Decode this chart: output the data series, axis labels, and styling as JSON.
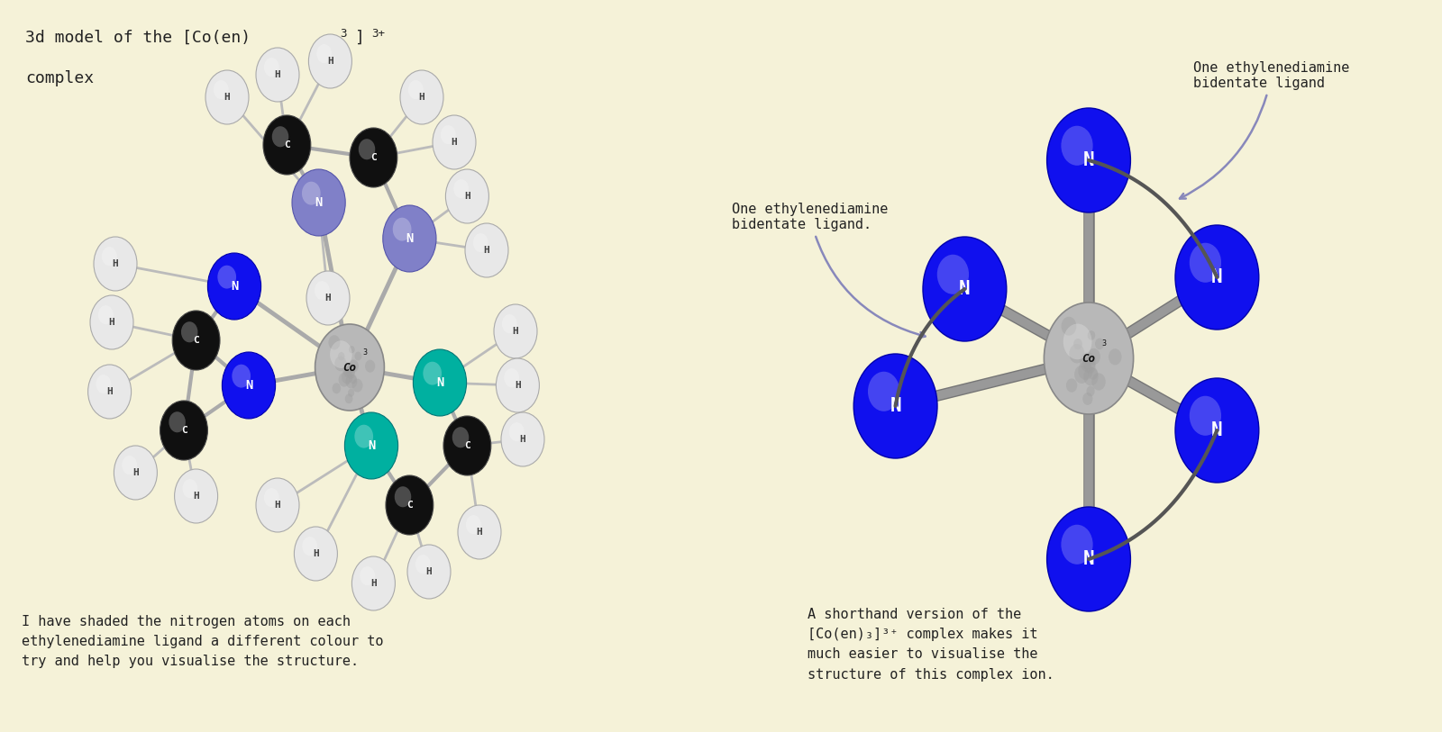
{
  "background_color": "#f5f2d8",
  "left_caption": "I have shaded the nitrogen atoms on each\nethylenediamine ligand a different colour to\ntry and help you visualise the structure.",
  "right_caption": "A shorthand version of the\n[Co(en)₃]³⁺ complex makes it\nmuch easier to visualise the\nstructure of this complex ion.",
  "label_ligand_top": "One ethylenediamine\nbidentate ligand",
  "label_ligand_left": "One ethylenediamine\nbidentate ligand.",
  "N_blue": "#1010ee",
  "N_lavender": "#8080c8",
  "N_teal": "#00b0a0",
  "C_color": "#101010",
  "H_color": "#e8e8e8",
  "bond_color": "#999999",
  "Co_color": "#c0c0c0",
  "font_family": "DejaVu Sans Mono"
}
